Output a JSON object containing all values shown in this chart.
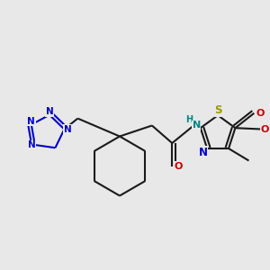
{
  "background_color": "#e8e8e8",
  "bond_color": "#1a1a1a",
  "bond_width": 1.5,
  "tetrazole_color": "#0000cc",
  "nitrogen_color": "#0000cc",
  "sulfur_color": "#999900",
  "oxygen_color": "#cc0000",
  "nh_color": "#008888",
  "fig_width": 3.0,
  "fig_height": 3.0,
  "dpi": 100,
  "xlim": [
    0,
    10
  ],
  "ylim": [
    0,
    10
  ]
}
